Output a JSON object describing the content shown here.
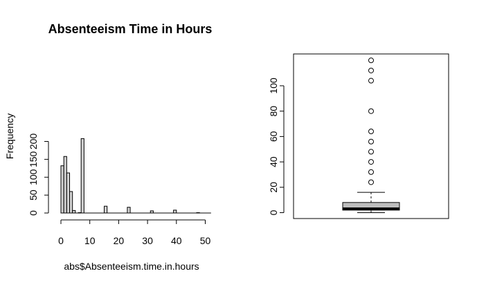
{
  "chart_data": [
    {
      "type": "bar",
      "subtype": "histogram",
      "title": "Absenteeism Time in Hours",
      "xlabel": "abs$Absenteeism.time.in.hours",
      "ylabel": "Frequency",
      "bin_width": 1,
      "bins": [
        {
          "x0": 0,
          "x1": 1,
          "count": 132
        },
        {
          "x0": 1,
          "x1": 2,
          "count": 158
        },
        {
          "x0": 2,
          "x1": 3,
          "count": 112
        },
        {
          "x0": 3,
          "x1": 4,
          "count": 60
        },
        {
          "x0": 4,
          "x1": 5,
          "count": 7
        },
        {
          "x0": 5,
          "x1": 6,
          "count": 0
        },
        {
          "x0": 6,
          "x1": 7,
          "count": 1
        },
        {
          "x0": 7,
          "x1": 8,
          "count": 208
        },
        {
          "x0": 15,
          "x1": 16,
          "count": 19
        },
        {
          "x0": 23,
          "x1": 24,
          "count": 16
        },
        {
          "x0": 31,
          "x1": 32,
          "count": 6
        },
        {
          "x0": 39,
          "x1": 40,
          "count": 8
        },
        {
          "x0": 47,
          "x1": 48,
          "count": 1
        }
      ],
      "xlim": [
        0,
        52
      ],
      "ylim": [
        0,
        210
      ],
      "xticks": [
        "0",
        "10",
        "20",
        "30",
        "40",
        "50"
      ],
      "yticks": [
        "0",
        "50",
        "100",
        "150",
        "200"
      ],
      "xtick_values": [
        0,
        10,
        20,
        30,
        40,
        50
      ],
      "ytick_values": [
        0,
        50,
        100,
        150,
        200
      ]
    },
    {
      "type": "box",
      "box": {
        "whisker_low": 0,
        "q1": 2,
        "median": 3,
        "q3": 8,
        "whisker_high": 16
      },
      "outliers": [
        24,
        32,
        40,
        48,
        56,
        64,
        80,
        104,
        112,
        120
      ],
      "ylim": [
        0,
        124
      ],
      "yticks": [
        "0",
        "20",
        "40",
        "60",
        "80",
        "100"
      ],
      "ytick_values": [
        0,
        20,
        40,
        60,
        80,
        100
      ],
      "fill": "#bebebe"
    }
  ]
}
